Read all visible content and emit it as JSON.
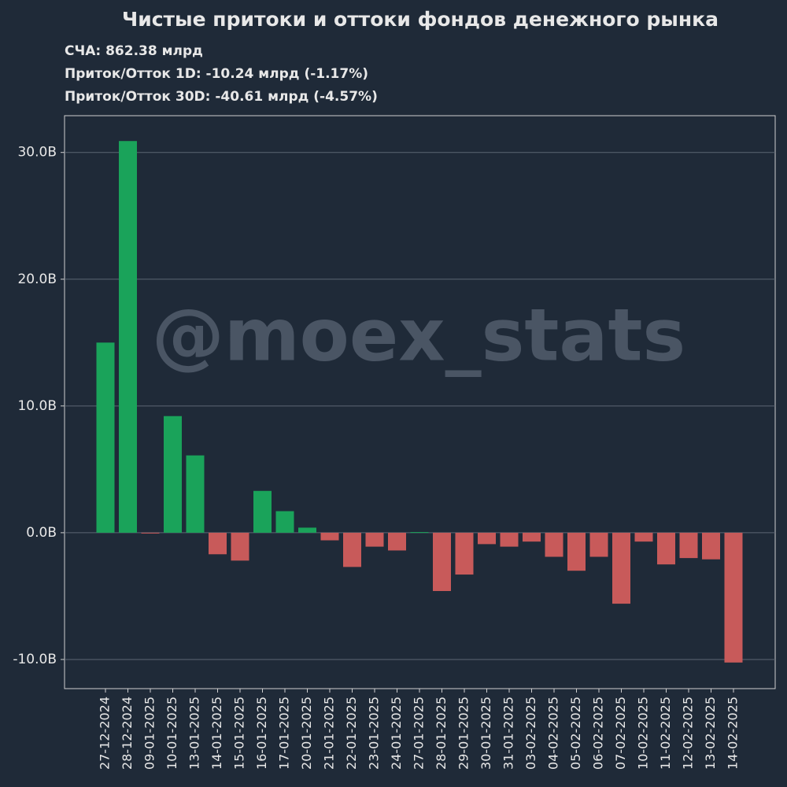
{
  "chart_data": {
    "type": "bar",
    "title": "Чистые притоки и оттоки фондов денежного рынка",
    "subtitle_lines": [
      "СЧА: 862.38 млрд",
      "Приток/Отток 1D: -10.24 млрд (-1.17%)",
      "Приток/Отток 30D: -40.61 млрд (-4.57%)"
    ],
    "watermark": "@moex_stats",
    "categories": [
      "27-12-2024",
      "28-12-2024",
      "09-01-2025",
      "10-01-2025",
      "13-01-2025",
      "14-01-2025",
      "15-01-2025",
      "16-01-2025",
      "17-01-2025",
      "20-01-2025",
      "21-01-2025",
      "22-01-2025",
      "23-01-2025",
      "24-01-2025",
      "27-01-2025",
      "28-01-2025",
      "29-01-2025",
      "30-01-2025",
      "31-01-2025",
      "03-02-2025",
      "04-02-2025",
      "05-02-2025",
      "06-02-2025",
      "07-02-2025",
      "10-02-2025",
      "11-02-2025",
      "12-02-2025",
      "13-02-2025",
      "14-02-2025"
    ],
    "values": [
      15.0,
      30.9,
      -0.05,
      9.2,
      6.1,
      -1.7,
      -2.2,
      3.3,
      1.7,
      0.4,
      -0.6,
      -2.7,
      -1.1,
      -1.4,
      0.05,
      -4.6,
      -3.3,
      -0.9,
      -1.1,
      -0.7,
      -1.9,
      -3.0,
      -1.9,
      -5.6,
      -0.7,
      -2.5,
      -2.0,
      -2.1,
      -10.24
    ],
    "colors": {
      "positive": "#1aa35a",
      "negative": "#c85a5a"
    },
    "ylim": [
      -12.3,
      32.9
    ],
    "yticks": [
      {
        "value": -10,
        "label": "-10.0B"
      },
      {
        "value": 0,
        "label": "0.0B"
      },
      {
        "value": 10,
        "label": "10.0B"
      },
      {
        "value": 20,
        "label": "20.0B"
      },
      {
        "value": 30,
        "label": "30.0B"
      }
    ],
    "grid": true
  }
}
